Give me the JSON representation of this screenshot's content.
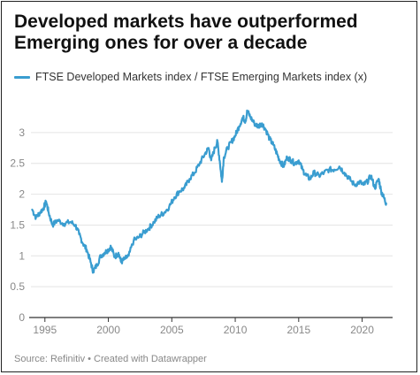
{
  "title": "Developed markets have outperformed Emerging ones for over a decade",
  "footer": "Source: Refinitiv • Created with Datawrapper",
  "colors": {
    "line": "#3a9dd0",
    "grid": "#e4e4e4",
    "axis": "#333333",
    "tick_text": "#888888"
  },
  "chart_data": {
    "type": "line",
    "title": "Developed markets have outperformed Emerging ones for over a decade",
    "xlabel": "",
    "ylabel": "",
    "xlim": [
      1993.9,
      2022.4
    ],
    "ylim": [
      0,
      3.4
    ],
    "x_ticks": [
      1995,
      2000,
      2005,
      2010,
      2015,
      2020
    ],
    "y_ticks": [
      0,
      0.5,
      1,
      1.5,
      2,
      2.5,
      3
    ],
    "y_tick_labels": [
      "0",
      "0.5",
      "1",
      "1.5",
      "2",
      "2.5",
      "3"
    ],
    "grid": true,
    "legend": "top-left",
    "series": [
      {
        "name": "FTSE Developed Markets index / FTSE Emerging Markets index (x)",
        "x": [
          1994.0,
          1994.3,
          1994.6,
          1994.9,
          1995.1,
          1995.3,
          1995.6,
          1996.0,
          1996.5,
          1997.0,
          1997.4,
          1997.7,
          1998.0,
          1998.3,
          1998.6,
          1998.8,
          1999.1,
          1999.4,
          1999.7,
          2000.0,
          2000.2,
          2000.5,
          2000.8,
          2001.0,
          2001.3,
          2001.6,
          2002.0,
          2002.4,
          2002.8,
          2003.2,
          2003.6,
          2004.0,
          2004.4,
          2004.8,
          2005.2,
          2005.6,
          2006.0,
          2006.4,
          2006.8,
          2007.2,
          2007.6,
          2007.9,
          2008.1,
          2008.4,
          2008.6,
          2008.8,
          2008.95,
          2009.1,
          2009.4,
          2009.7,
          2010.0,
          2010.3,
          2010.6,
          2010.8,
          2010.95,
          2011.2,
          2011.5,
          2011.8,
          2012.1,
          2012.4,
          2012.7,
          2013.0,
          2013.3,
          2013.5,
          2013.8,
          2014.1,
          2014.4,
          2014.7,
          2015.0,
          2015.3,
          2015.6,
          2015.9,
          2016.2,
          2016.6,
          2017.0,
          2017.4,
          2017.8,
          2018.2,
          2018.6,
          2019.0,
          2019.4,
          2019.8,
          2020.1,
          2020.4,
          2020.7,
          2021.0,
          2021.3,
          2021.5,
          2021.7,
          2021.9
        ],
        "values": [
          1.75,
          1.62,
          1.7,
          1.78,
          1.88,
          1.7,
          1.5,
          1.58,
          1.52,
          1.55,
          1.5,
          1.35,
          1.2,
          1.1,
          0.9,
          0.75,
          0.85,
          1.0,
          1.05,
          1.1,
          1.15,
          0.98,
          1.05,
          0.9,
          0.95,
          1.0,
          1.25,
          1.3,
          1.38,
          1.45,
          1.55,
          1.65,
          1.7,
          1.8,
          1.95,
          2.05,
          2.1,
          2.25,
          2.35,
          2.5,
          2.65,
          2.75,
          2.55,
          2.75,
          2.85,
          2.5,
          2.2,
          2.6,
          2.75,
          2.85,
          2.95,
          3.1,
          3.25,
          3.18,
          3.35,
          3.25,
          3.15,
          3.1,
          3.15,
          3.05,
          2.9,
          2.8,
          2.65,
          2.55,
          2.45,
          2.6,
          2.55,
          2.5,
          2.55,
          2.4,
          2.3,
          2.25,
          2.35,
          2.3,
          2.35,
          2.4,
          2.4,
          2.45,
          2.35,
          2.25,
          2.15,
          2.2,
          2.15,
          2.2,
          2.3,
          2.1,
          2.25,
          2.05,
          1.95,
          1.85
        ]
      }
    ]
  }
}
